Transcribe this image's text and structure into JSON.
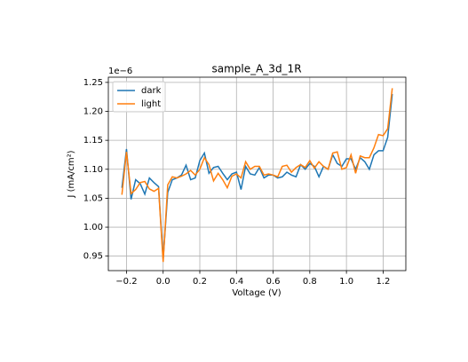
{
  "chart_data": {
    "type": "line",
    "title": "sample_A_3d_1R",
    "x_label": "Voltage (V)",
    "y_label": "J (mA/cm²)",
    "y_offset_label": "1e−6",
    "x": [
      -0.225,
      -0.2,
      -0.175,
      -0.15,
      -0.125,
      -0.1,
      -0.075,
      -0.05,
      -0.025,
      0,
      0.025,
      0.05,
      0.075,
      0.1,
      0.125,
      0.15,
      0.175,
      0.2,
      0.225,
      0.25,
      0.275,
      0.3,
      0.325,
      0.35,
      0.375,
      0.4,
      0.425,
      0.45,
      0.475,
      0.5,
      0.525,
      0.55,
      0.575,
      0.6,
      0.625,
      0.65,
      0.675,
      0.7,
      0.725,
      0.75,
      0.775,
      0.8,
      0.825,
      0.85,
      0.875,
      0.9,
      0.925,
      0.95,
      0.975,
      1.0,
      1.025,
      1.05,
      1.075,
      1.1,
      1.125,
      1.15,
      1.175,
      1.2,
      1.225,
      1.25
    ],
    "series": [
      {
        "name": "dark",
        "color": "#1f77b4",
        "values": [
          1.068,
          1.135,
          1.048,
          1.082,
          1.075,
          1.057,
          1.085,
          1.077,
          1.07,
          0.945,
          1.06,
          1.082,
          1.085,
          1.09,
          1.107,
          1.082,
          1.085,
          1.115,
          1.128,
          1.093,
          1.103,
          1.105,
          1.093,
          1.082,
          1.092,
          1.095,
          1.065,
          1.105,
          1.092,
          1.09,
          1.103,
          1.085,
          1.09,
          1.09,
          1.085,
          1.087,
          1.095,
          1.09,
          1.087,
          1.108,
          1.1,
          1.11,
          1.105,
          1.087,
          1.105,
          1.1,
          1.125,
          1.11,
          1.105,
          1.118,
          1.118,
          1.1,
          1.12,
          1.113,
          1.1,
          1.125,
          1.132,
          1.132,
          1.155,
          1.23
        ]
      },
      {
        "name": "light",
        "color": "#ff7f0e",
        "values": [
          1.056,
          1.13,
          1.058,
          1.065,
          1.077,
          1.079,
          1.066,
          1.062,
          1.067,
          0.94,
          1.073,
          1.087,
          1.085,
          1.088,
          1.092,
          1.098,
          1.09,
          1.1,
          1.12,
          1.108,
          1.08,
          1.093,
          1.082,
          1.068,
          1.088,
          1.092,
          1.085,
          1.113,
          1.1,
          1.105,
          1.105,
          1.09,
          1.092,
          1.09,
          1.087,
          1.105,
          1.107,
          1.095,
          1.103,
          1.108,
          1.103,
          1.115,
          1.102,
          1.113,
          1.105,
          1.1,
          1.128,
          1.13,
          1.1,
          1.103,
          1.125,
          1.093,
          1.123,
          1.12,
          1.12,
          1.137,
          1.16,
          1.158,
          1.17,
          1.24
        ]
      }
    ],
    "xlim": [
      -0.299,
      1.324
    ],
    "ylim": [
      0.925,
      1.259
    ],
    "xticks": [
      {
        "value": -0.2,
        "label": "−0.2"
      },
      {
        "value": 0,
        "label": "0.0"
      },
      0.2,
      0.4,
      0.6,
      0.8,
      {
        "value": 1,
        "label": "1.0"
      },
      1.2
    ],
    "yticks": [
      0.95,
      {
        "value": 1,
        "label": "1.00"
      },
      1.05,
      {
        "value": 1.1,
        "label": "1.10"
      },
      1.15,
      {
        "value": 1.2,
        "label": "1.20"
      },
      1.25
    ],
    "grid": true,
    "legend": "upper left"
  }
}
